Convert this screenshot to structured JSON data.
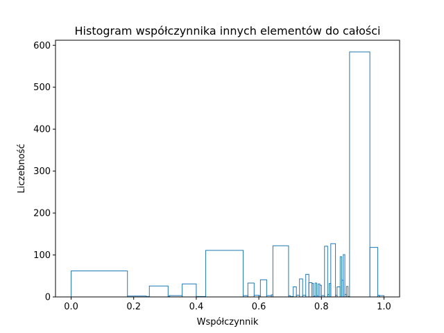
{
  "chart_data": {
    "type": "bar",
    "histtype": "step",
    "title": "Histogram współczynnika innych elementów do całości",
    "xlabel": "Współczynnik",
    "ylabel": "Liczebność",
    "xlim": [
      -0.05,
      1.05
    ],
    "ylim": [
      0,
      612
    ],
    "xticks": [
      0.0,
      0.2,
      0.4,
      0.6,
      0.8,
      1.0
    ],
    "xtick_labels": [
      "0.0",
      "0.2",
      "0.4",
      "0.6",
      "0.8",
      "1.0"
    ],
    "yticks": [
      0,
      100,
      200,
      300,
      400,
      500,
      600
    ],
    "ytick_labels": [
      "0",
      "100",
      "200",
      "300",
      "400",
      "500",
      "600"
    ],
    "grid": false,
    "line_color": "#1f77b4",
    "bin_edges": [
      0.0,
      0.18,
      0.24,
      0.245,
      0.25,
      0.31,
      0.315,
      0.355,
      0.4,
      0.43,
      0.55,
      0.565,
      0.585,
      0.6,
      0.605,
      0.625,
      0.64,
      0.645,
      0.695,
      0.7,
      0.71,
      0.72,
      0.73,
      0.74,
      0.75,
      0.76,
      0.77,
      0.775,
      0.78,
      0.785,
      0.79,
      0.795,
      0.8,
      0.81,
      0.82,
      0.825,
      0.83,
      0.845,
      0.85,
      0.86,
      0.865,
      0.87,
      0.875,
      0.88,
      0.885,
      0.89,
      0.955,
      0.98,
      0.985,
      1.0
    ],
    "values": [
      62,
      2,
      1,
      1,
      26,
      2,
      3,
      31,
      1,
      111,
      3,
      33,
      4,
      3,
      41,
      3,
      5,
      122,
      3,
      1,
      24,
      4,
      43,
      4,
      54,
      34,
      32,
      2,
      33,
      3,
      31,
      28,
      3,
      121,
      6,
      32,
      127,
      4,
      24,
      96,
      40,
      101,
      6,
      25,
      1,
      584,
      118,
      4,
      3
    ]
  }
}
